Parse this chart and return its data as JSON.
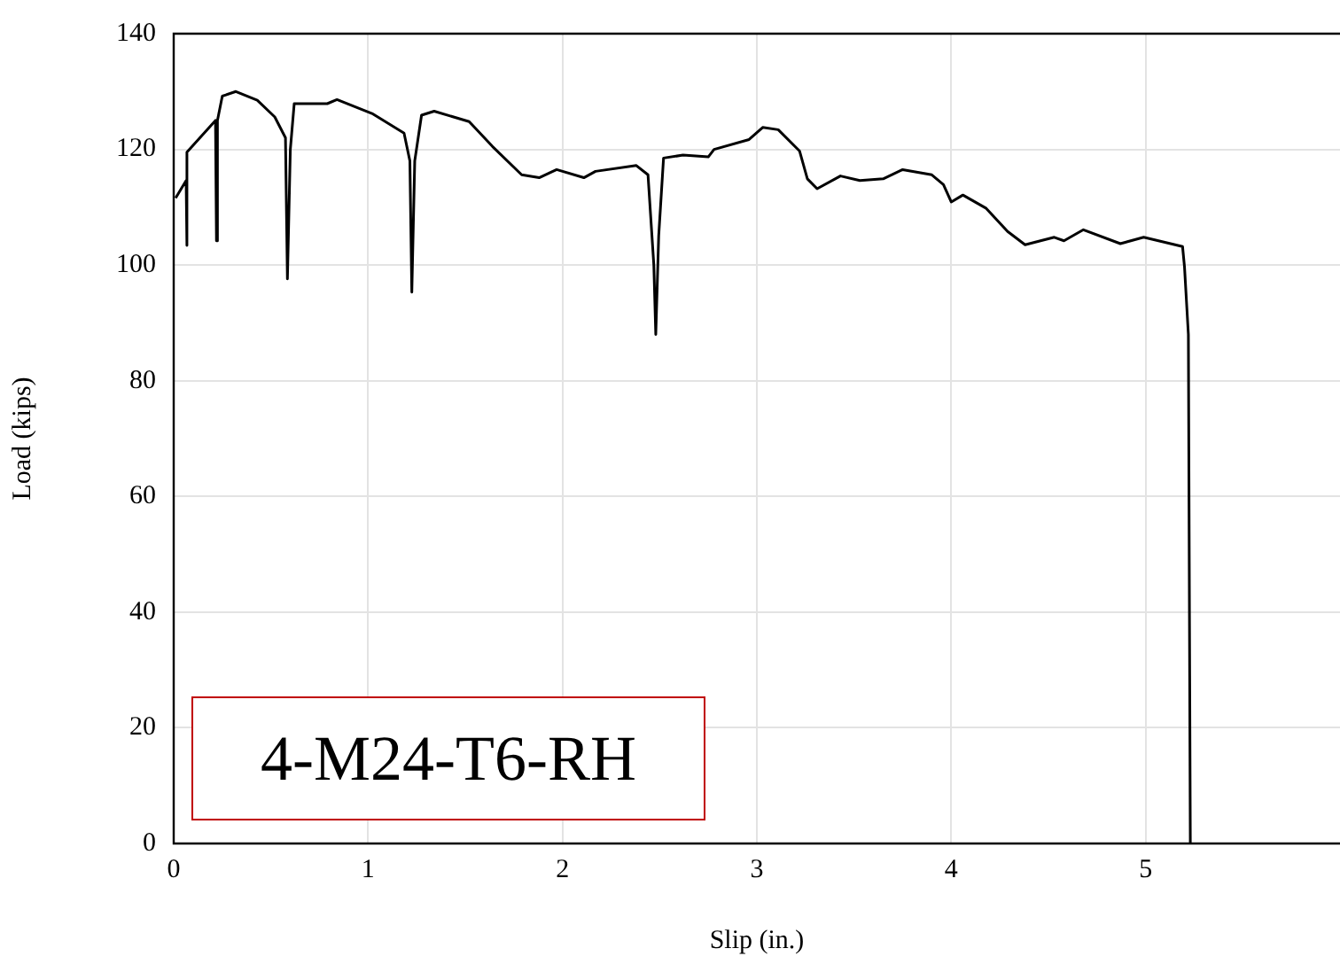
{
  "chart_data": {
    "type": "line",
    "xlabel": "Slip (in.)",
    "ylabel": "Load (kips)",
    "xlim": [
      0,
      6
    ],
    "ylim": [
      0,
      140
    ],
    "xticks": [
      0,
      1,
      2,
      3,
      4,
      5
    ],
    "yticks": [
      0,
      20,
      40,
      60,
      80,
      100,
      120,
      140
    ],
    "grid": true,
    "legend": false,
    "annotations": [
      "4-M24-T6-RH"
    ],
    "series": [
      {
        "color": "#000000",
        "x": [
          0.01,
          0.064,
          0.066,
          0.07,
          0.215,
          0.22,
          0.225,
          0.25,
          0.32,
          0.43,
          0.52,
          0.575,
          0.585,
          0.6,
          0.62,
          0.79,
          0.84,
          1.02,
          1.185,
          1.215,
          1.225,
          1.24,
          1.275,
          1.34,
          1.52,
          1.64,
          1.79,
          1.88,
          1.97,
          2.11,
          2.17,
          2.38,
          2.44,
          2.47,
          2.48,
          2.495,
          2.52,
          2.62,
          2.75,
          2.78,
          2.96,
          3.03,
          3.11,
          3.22,
          3.26,
          3.31,
          3.43,
          3.53,
          3.65,
          3.75,
          3.9,
          3.96,
          4.0,
          4.06,
          4.18,
          4.29,
          4.38,
          4.53,
          4.58,
          4.68,
          4.87,
          4.99,
          5.19,
          5.2,
          5.22,
          5.23
        ],
        "values": [
          111.6,
          114.6,
          103.4,
          119.5,
          125,
          104.2,
          125,
          129.2,
          130,
          128.5,
          125.6,
          122,
          97.6,
          120,
          127.9,
          127.9,
          128.6,
          126.2,
          122.8,
          118,
          95.3,
          118,
          125.9,
          126.6,
          124.8,
          120.5,
          115.6,
          115.1,
          116.5,
          115.1,
          116.2,
          117.2,
          115.6,
          100,
          88,
          105,
          118.5,
          119,
          118.7,
          120,
          121.7,
          123.8,
          123.4,
          119.7,
          114.9,
          113.2,
          115.4,
          114.6,
          114.9,
          116.5,
          115.6,
          113.9,
          110.9,
          112.1,
          109.8,
          105.8,
          103.5,
          104.8,
          104.2,
          106.1,
          103.7,
          104.8,
          103.2,
          99.7,
          88,
          0
        ]
      }
    ]
  }
}
